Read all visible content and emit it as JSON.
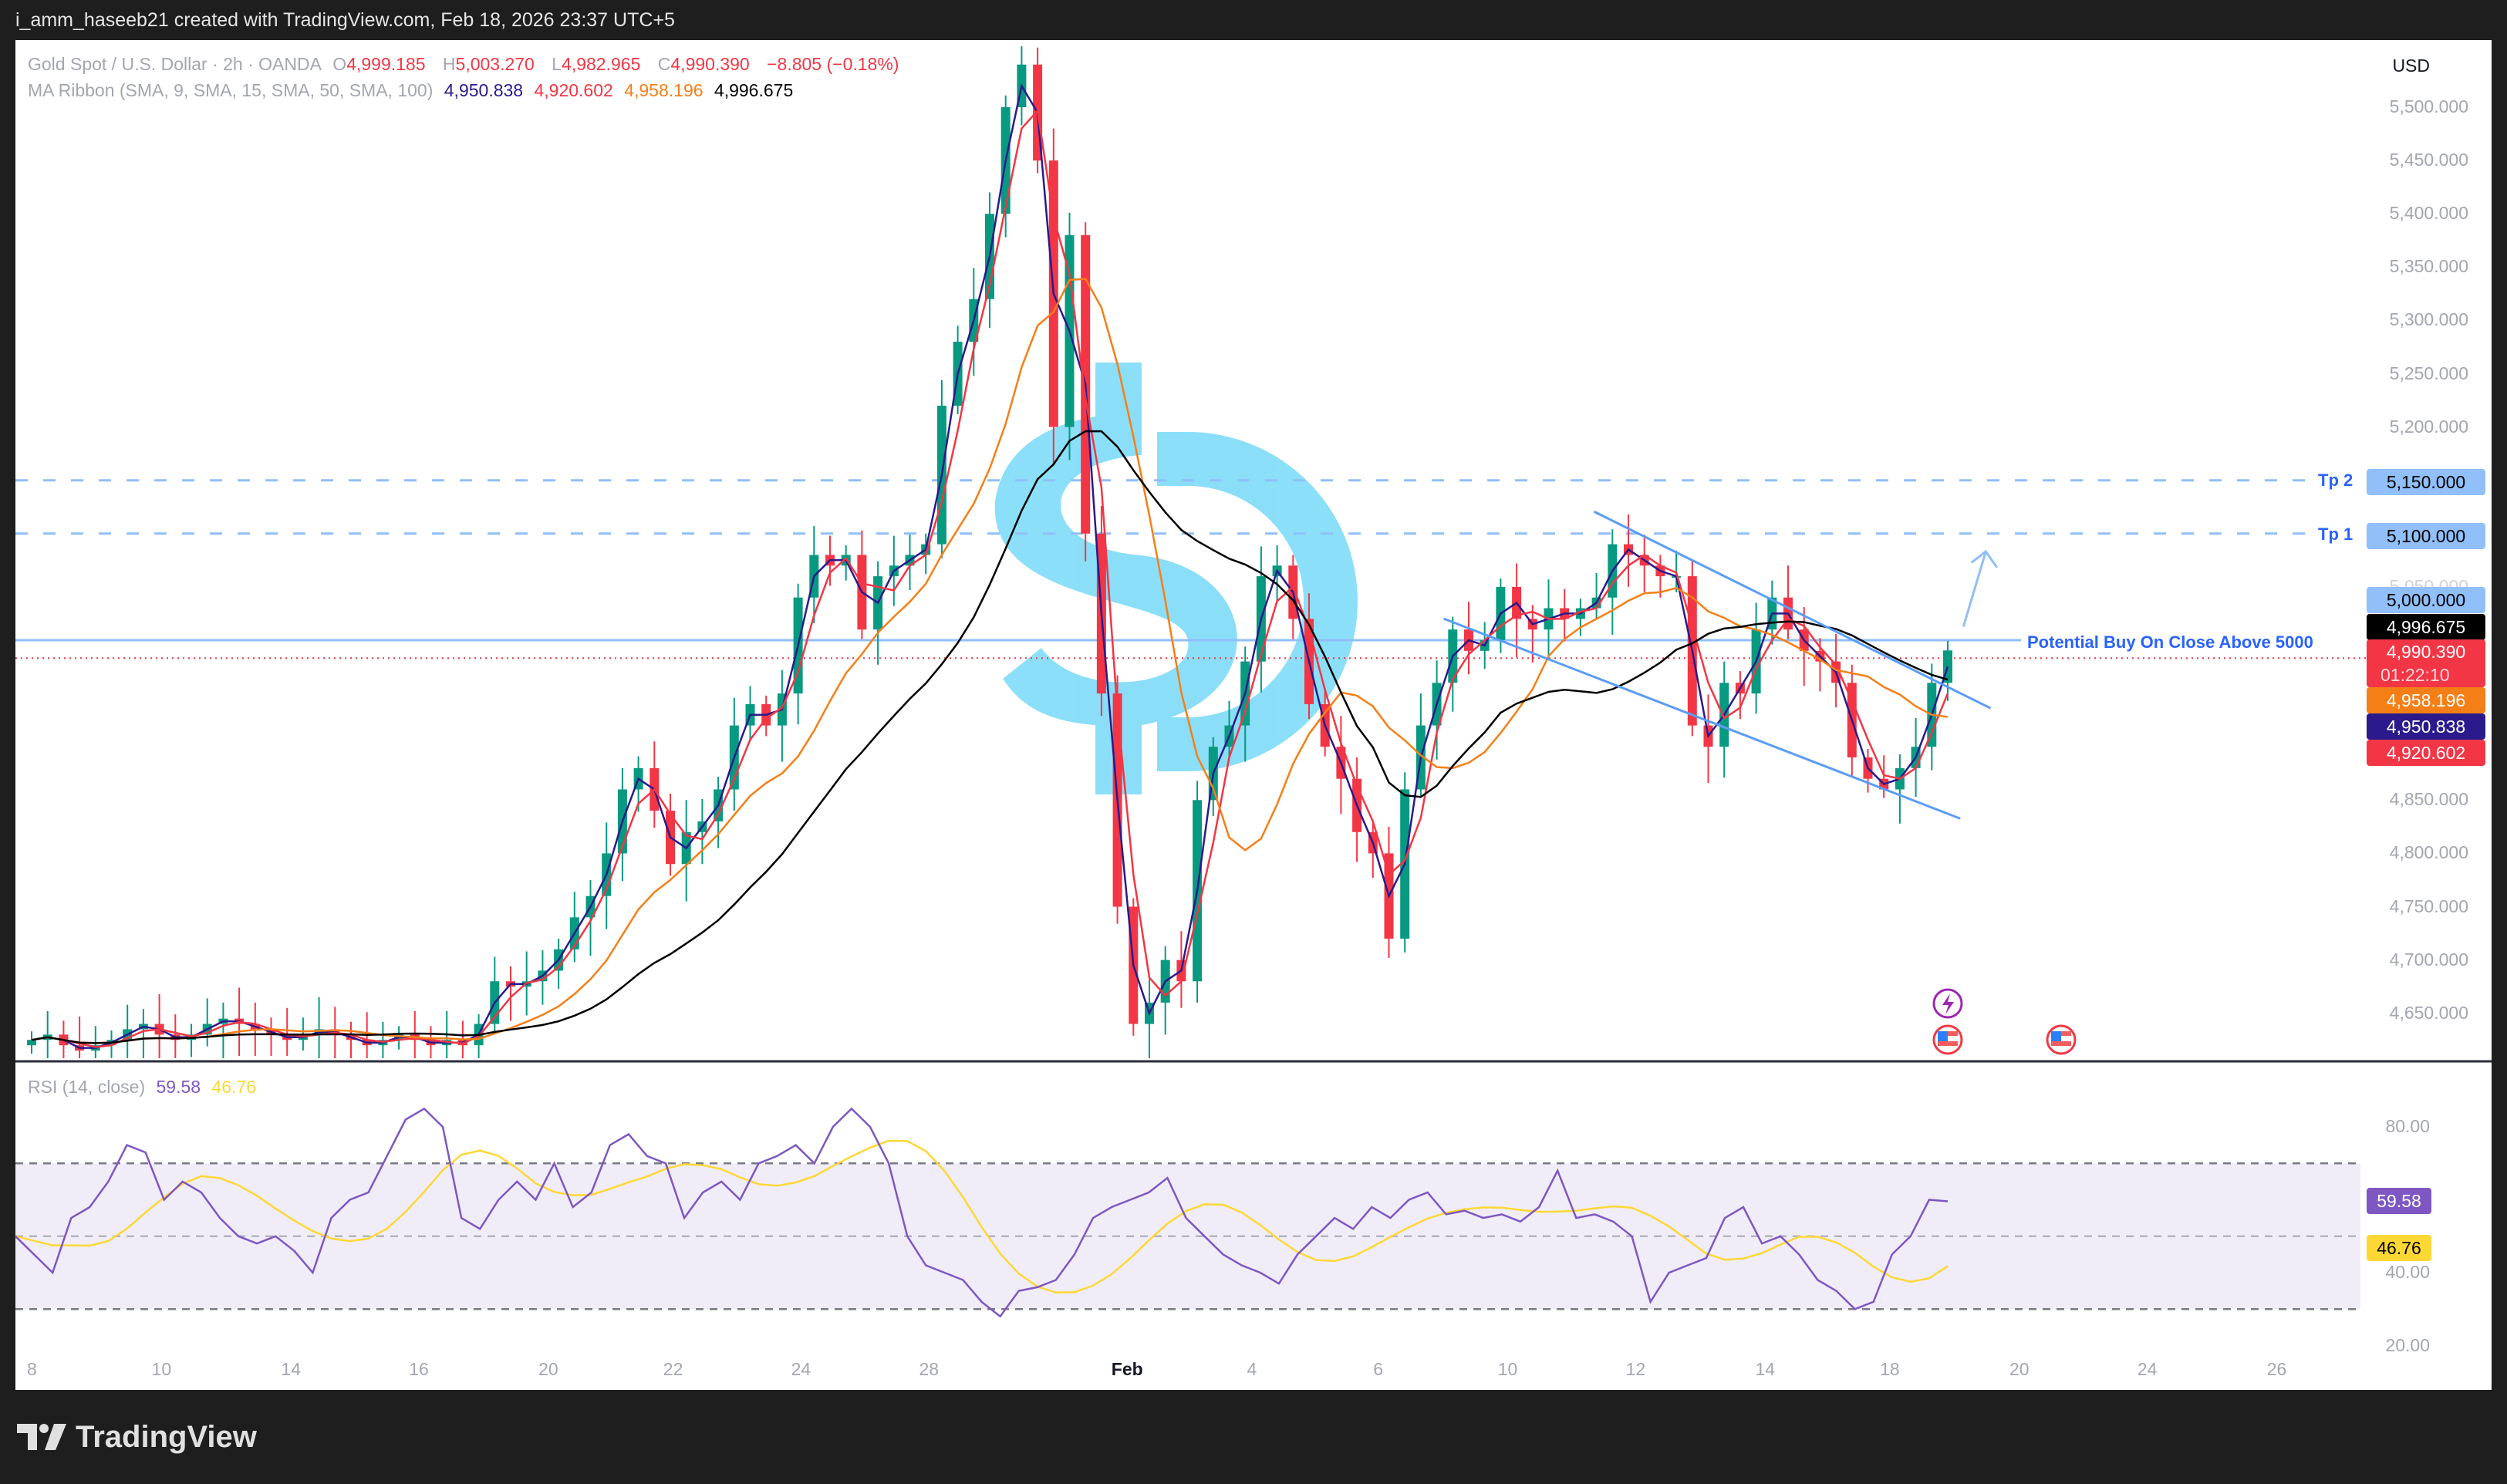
{
  "header": {
    "credit": "i_amm_haseeb21 created with TradingView.com, Feb 18, 2026 23:37 UTC+5"
  },
  "symbol": {
    "name": "Gold Spot / U.S. Dollar · 2h · OANDA",
    "o_label": "O",
    "open": "4,999.185",
    "h_label": "H",
    "high": "5,003.270",
    "l_label": "L",
    "low": "4,982.965",
    "c_label": "C",
    "close": "4,990.390",
    "change": "−8.805 (−0.18%)"
  },
  "ma_ribbon": {
    "label": "MA Ribbon (SMA, 9, SMA, 15, SMA, 50, SMA, 100)",
    "values": [
      "4,950.838",
      "4,920.602",
      "4,958.196",
      "4,996.675"
    ],
    "colors": [
      "#2a1a8c",
      "#f23645",
      "#f57f17",
      "#000000"
    ]
  },
  "rsi": {
    "label": "RSI (14, close)",
    "value": "59.58",
    "ma_value": "46.76",
    "color": "#7e57c2",
    "ma_color": "#fdd835"
  },
  "price_axis": {
    "currency": "USD",
    "ticks": [
      "5,500.000",
      "5,450.000",
      "5,400.000",
      "5,350.000",
      "5,300.000",
      "5,250.000",
      "5,200.000",
      "5,050.000",
      "4,850.000",
      "4,800.000",
      "4,750.000",
      "4,700.000",
      "4,650.000"
    ],
    "tick_values": [
      5500,
      5450,
      5400,
      5350,
      5300,
      5250,
      5200,
      5050,
      4850,
      4800,
      4750,
      4700,
      4650
    ]
  },
  "price_labels": [
    {
      "text": "5,150.000",
      "bg": "#90bff9",
      "fg": "#000000"
    },
    {
      "text": "5,100.000",
      "bg": "#90bff9",
      "fg": "#000000"
    },
    {
      "text": "5,000.000",
      "bg": "#90bff9",
      "fg": "#000000"
    },
    {
      "text": "4,996.675",
      "bg": "#000000",
      "fg": "#ffffff"
    },
    {
      "text": "4,990.390",
      "sub": "01:22:10",
      "bg": "#f23645",
      "fg": "#ffffff"
    },
    {
      "text": "4,958.196",
      "bg": "#f57f17",
      "fg": "#ffffff"
    },
    {
      "text": "4,950.838",
      "bg": "#2a1a8c",
      "fg": "#ffffff"
    },
    {
      "text": "4,920.602",
      "bg": "#f23645",
      "fg": "#ffffff"
    }
  ],
  "rsi_axis": {
    "ticks": [
      "80.00",
      "40.00",
      "20.00"
    ],
    "tick_values": [
      80,
      40,
      20
    ],
    "bands": [
      70,
      50,
      30
    ]
  },
  "drawings": {
    "tp2": {
      "label": "Tp 2",
      "price": 5150
    },
    "tp1": {
      "label": "Tp 1",
      "price": 5100
    },
    "buy": {
      "label": "Potential Buy On Close Above 5000",
      "price": 5000
    },
    "color": "#2962ff"
  },
  "time_axis": [
    "8",
    "10",
    "14",
    "16",
    "20",
    "22",
    "24",
    "28",
    "Feb",
    "4",
    "6",
    "10",
    "12",
    "14",
    "18",
    "20",
    "24",
    "26"
  ],
  "footer": {
    "brand": "TradingView"
  },
  "chart_data": {
    "type": "candlestick",
    "up_color": "#089981",
    "down_color": "#f23645",
    "ylim": [
      4600,
      5560
    ],
    "closes": [
      4625,
      4630,
      4620,
      4615,
      4620,
      4625,
      4635,
      4640,
      4630,
      4625,
      4630,
      4640,
      4645,
      4640,
      4635,
      4630,
      4625,
      4630,
      4635,
      4630,
      4625,
      4620,
      4625,
      4630,
      4625,
      4620,
      4625,
      4620,
      4640,
      4680,
      4675,
      4680,
      4690,
      4710,
      4740,
      4760,
      4800,
      4860,
      4880,
      4840,
      4790,
      4820,
      4830,
      4860,
      4920,
      4940,
      4920,
      4950,
      5040,
      5080,
      5070,
      5080,
      5010,
      5060,
      5070,
      5080,
      5090,
      5220,
      5280,
      5320,
      5400,
      5500,
      5540,
      5450,
      5200,
      5380,
      5100,
      4950,
      4750,
      4640,
      4660,
      4700,
      4680,
      4850,
      4900,
      4920,
      4980,
      5060,
      5070,
      5020,
      4940,
      4900,
      4870,
      4820,
      4800,
      4720,
      4860,
      4920,
      4960,
      5010,
      4990,
      5000,
      5050,
      5020,
      5010,
      5030,
      5020,
      5030,
      5040,
      5090,
      5080,
      5070,
      5060,
      5060,
      4920,
      4900,
      4960,
      4950,
      5010,
      5040,
      5010,
      4990,
      4980,
      4960,
      4890,
      4870,
      4860,
      4880,
      4900,
      4960,
      4990.39
    ],
    "rsi_values": [
      50,
      45,
      40,
      55,
      58,
      65,
      75,
      73,
      60,
      65,
      62,
      55,
      50,
      48,
      50,
      46,
      40,
      55,
      60,
      62,
      72,
      82,
      85,
      80,
      55,
      52,
      60,
      65,
      60,
      70,
      58,
      62,
      75,
      78,
      72,
      70,
      55,
      62,
      65,
      60,
      70,
      72,
      75,
      70,
      80,
      85,
      80,
      70,
      50,
      42,
      40,
      38,
      32,
      28,
      35,
      36,
      38,
      45,
      55,
      58,
      60,
      62,
      66,
      55,
      50,
      45,
      42,
      40,
      37,
      45,
      50,
      55,
      52,
      58,
      55,
      60,
      62,
      56,
      57,
      55,
      56,
      54,
      58,
      68,
      55,
      56,
      54,
      50,
      32,
      40,
      42,
      44,
      55,
      58,
      48,
      50,
      45,
      38,
      35,
      30,
      32,
      45,
      50,
      60,
      59.58
    ]
  }
}
